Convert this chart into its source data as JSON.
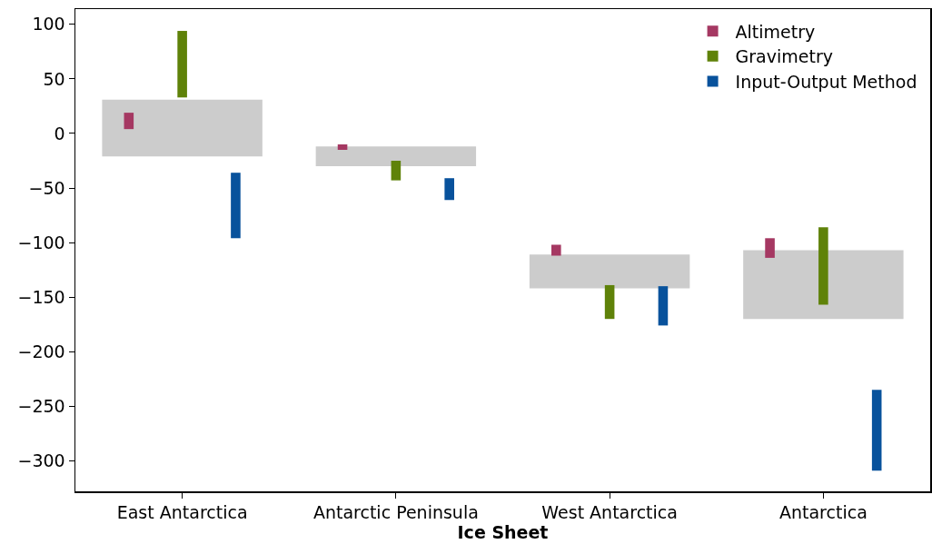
{
  "chart_data": {
    "type": "bar",
    "xlabel": "Ice Sheet",
    "categories": [
      "East Antarctica",
      "Antarctic Peninsula",
      "West Antarctica",
      "Antarctica"
    ],
    "series": [
      {
        "color": "#cccccc",
        "base": [
          -21,
          -30,
          -142,
          -170
        ],
        "values": [
          52,
          18,
          31,
          63
        ]
      },
      {
        "name": "Altimetry",
        "color": "#a53862",
        "base": [
          4,
          -15,
          -112,
          -114
        ],
        "values": [
          15,
          5,
          10,
          18
        ]
      },
      {
        "name": "Gravimetry",
        "color": "#5f8209",
        "base": [
          33,
          -43,
          -170,
          -157
        ],
        "values": [
          61,
          18,
          31,
          71
        ]
      },
      {
        "name": "Input-Output Method",
        "color": "#08529c",
        "base": [
          -96,
          -61,
          -176,
          -309
        ],
        "values": [
          60,
          20,
          36,
          74
        ]
      }
    ],
    "ylim": [
      -328,
      114
    ],
    "yticks": [
      {
        "value": 100,
        "label": "100"
      },
      {
        "value": 50,
        "label": "50"
      },
      {
        "value": 0,
        "label": "0"
      },
      {
        "value": -50,
        "label": "−50"
      },
      {
        "value": -100,
        "label": "−100"
      },
      {
        "value": -150,
        "label": "−150"
      },
      {
        "value": -200,
        "label": "−200"
      },
      {
        "value": -250,
        "label": "−250"
      },
      {
        "value": -300,
        "label": "−300"
      }
    ],
    "legend": "top right",
    "grid": false
  }
}
